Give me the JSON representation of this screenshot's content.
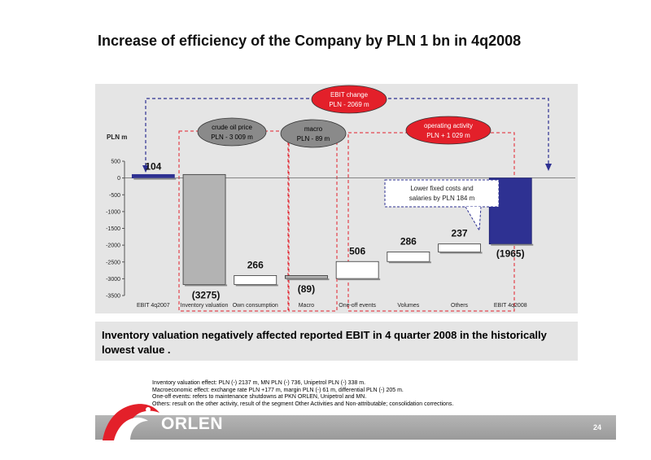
{
  "title": "Increase of efficiency of the Company by PLN 1 bn in 4q2008",
  "chart_data": {
    "type": "bar",
    "subtype": "waterfall",
    "ylabel": "PLN m",
    "ylim": [
      -3500,
      500
    ],
    "yticks": [
      500,
      0,
      -500,
      -1000,
      -1500,
      -2000,
      -2500,
      -3000,
      -3500
    ],
    "categories": [
      "EBIT 4q2007",
      "Inventory valuation",
      "Own consumption",
      "Macro",
      "One-off events",
      "Volumes",
      "Others",
      "EBIT 4q2008"
    ],
    "values": [
      104,
      -3275,
      266,
      -89,
      506,
      286,
      237,
      -1965
    ],
    "value_labels": [
      "104",
      "(3275)",
      "266",
      "(89)",
      "506",
      "286",
      "237",
      "(1965)"
    ],
    "colors": {
      "total": "#2e3192",
      "negative": "#b3b3b3",
      "positive": "#ffffff"
    },
    "grid": false
  },
  "bubbles": {
    "ebit_change": {
      "line1": "EBIT change",
      "line2": "PLN - 2069 m"
    },
    "crude": {
      "line1": "crude oil price",
      "line2": "PLN - 3 009 m"
    },
    "macro": {
      "line1": "macro",
      "line2": "PLN - 89 m"
    },
    "operating": {
      "line1": "operating activity",
      "line2": "PLN + 1 029 m"
    }
  },
  "callout": {
    "line1": "Lower fixed costs and",
    "line2": "salaries by PLN 184 m"
  },
  "note": "Inventory valuation negatively affected reported EBIT in 4 quarter 2008 in the historically lowest value .",
  "footnotes": [
    "Inventory valuation effect: PLN (-) 2137 m, MN PLN (-) 736, Unipetrol PLN (-) 338 m.",
    "Macroeconomic effect: exchange rate PLN +177 m, margin PLN (-) 61 m, differential PLN (-) 205 m.",
    "One-off events: refers to maintenance shutdowns at PKN ORLEN, Unipetrol and MN.",
    "Others: result on the other activity, result of the segment Other Activities and Non-attributable; consolidation corrections."
  ],
  "footer": {
    "page": "24",
    "logo": "ORLEN"
  },
  "accent": "#e3202a"
}
